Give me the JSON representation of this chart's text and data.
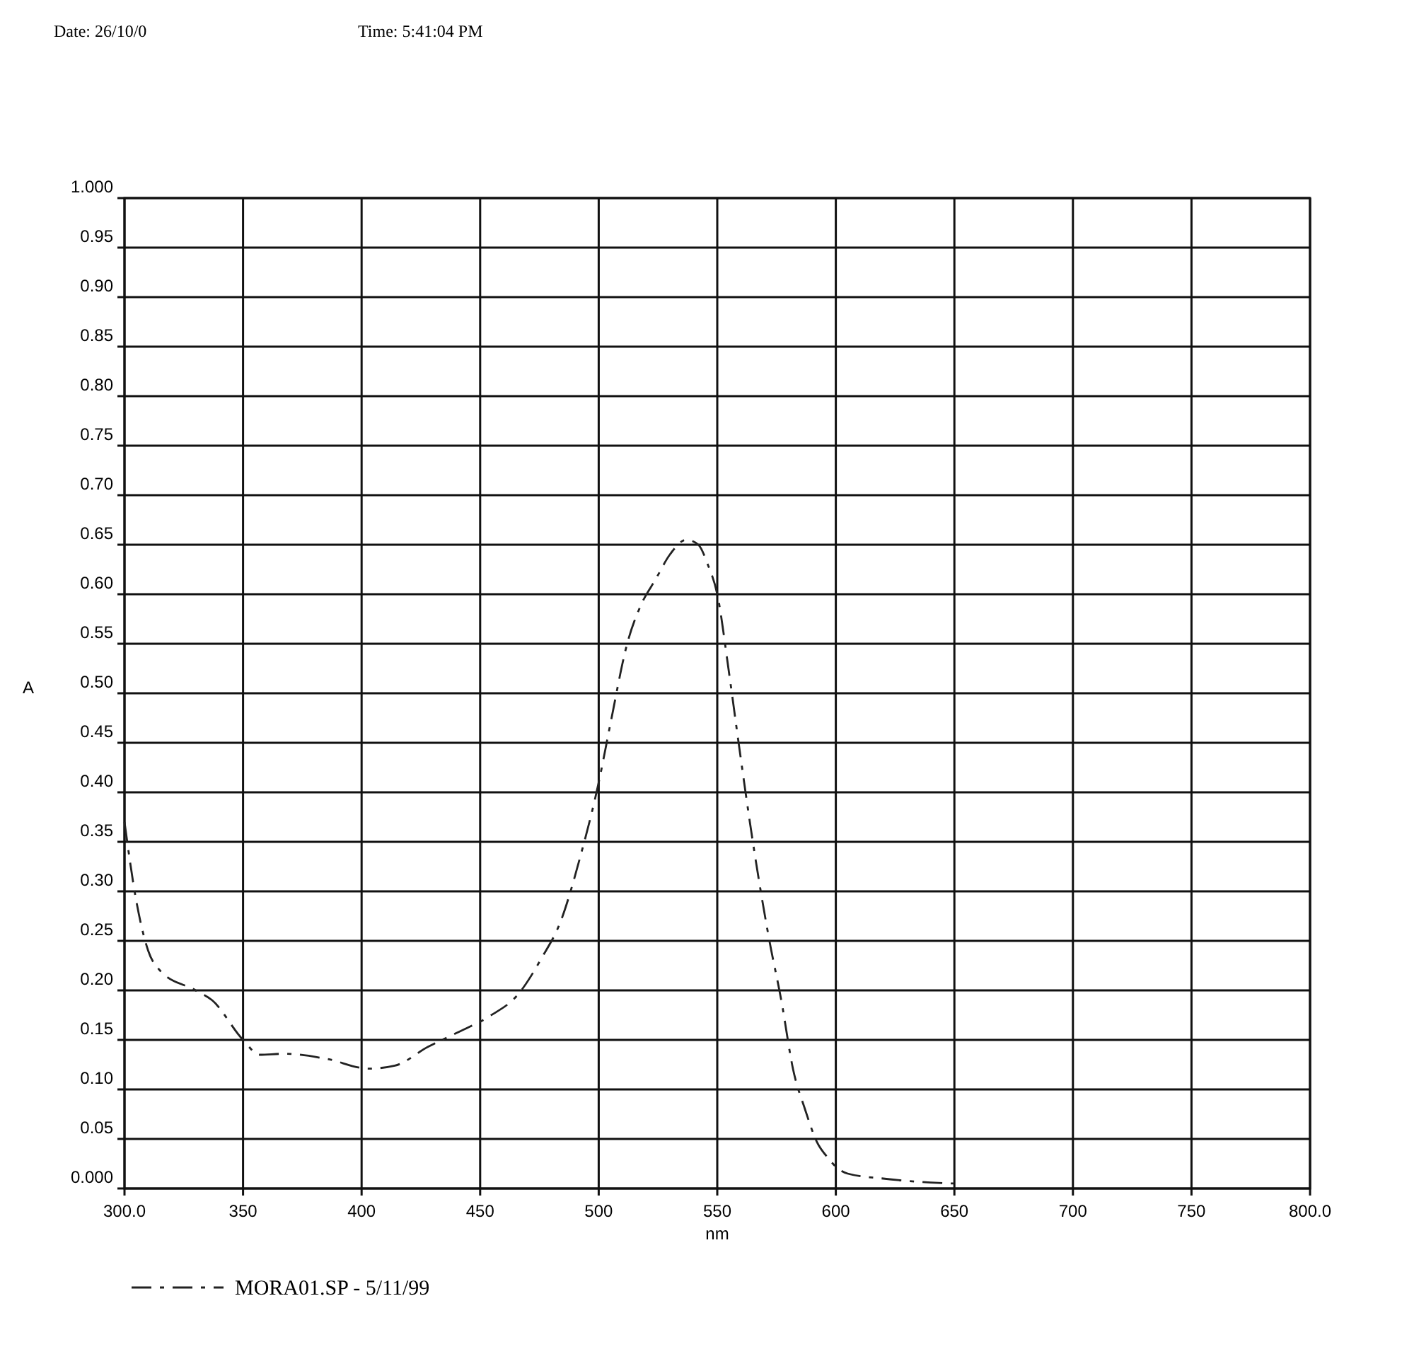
{
  "chart_data": {
    "type": "line",
    "xlabel": "nm",
    "ylabel": "A",
    "annotations": [
      "Date: 26/10/0",
      "Time: 5:41:04 PM"
    ],
    "xlim": [
      300,
      800
    ],
    "xticks": [
      {
        "value": 300,
        "label": "300.0"
      },
      350,
      400,
      450,
      500,
      550,
      600,
      650,
      700,
      750,
      {
        "value": 800,
        "label": "800.0"
      }
    ],
    "ylim": [
      0,
      1
    ],
    "yticks": [
      {
        "value": 0,
        "label": "0.000"
      },
      0.05,
      {
        "value": 0.1,
        "label": "0.10"
      },
      0.15,
      {
        "value": 0.2,
        "label": "0.20"
      },
      0.25,
      {
        "value": 0.3,
        "label": "0.30"
      },
      0.35,
      {
        "value": 0.4,
        "label": "0.40"
      },
      0.45,
      {
        "value": 0.5,
        "label": "0.50"
      },
      0.55,
      {
        "value": 0.6,
        "label": "0.60"
      },
      0.65,
      {
        "value": 0.7,
        "label": "0.70"
      },
      0.75,
      {
        "value": 0.8,
        "label": "0.80"
      },
      0.85,
      {
        "value": 0.9,
        "label": "0.90"
      },
      0.95,
      {
        "value": 1,
        "label": "1.000"
      }
    ],
    "grid": true,
    "legend": "bottom",
    "line_style": "dashed",
    "series": [
      {
        "name": "MORA01.SP - 5/11/99",
        "color": "#222222",
        "x": [
          300,
          305,
          310,
          315,
          330,
          337,
          350,
          357,
          367,
          385,
          403,
          414,
          428,
          440,
          454,
          466,
          476,
          484,
          492,
          500,
          505,
          512,
          518,
          524,
          530,
          537,
          542,
          546,
          550,
          555,
          559,
          565,
          572,
          577,
          582,
          587,
          592,
          597,
          600,
          605,
          620,
          640,
          650
        ],
        "values": [
          0.37,
          0.29,
          0.24,
          0.22,
          0.2,
          0.19,
          0.15,
          0.135,
          0.136,
          0.131,
          0.121,
          0.124,
          0.143,
          0.157,
          0.174,
          0.196,
          0.233,
          0.27,
          0.333,
          0.41,
          0.47,
          0.55,
          0.59,
          0.615,
          0.64,
          0.655,
          0.65,
          0.63,
          0.6,
          0.52,
          0.45,
          0.35,
          0.25,
          0.19,
          0.12,
          0.08,
          0.047,
          0.03,
          0.022,
          0.015,
          0.01,
          0.006,
          0.005
        ]
      }
    ]
  }
}
